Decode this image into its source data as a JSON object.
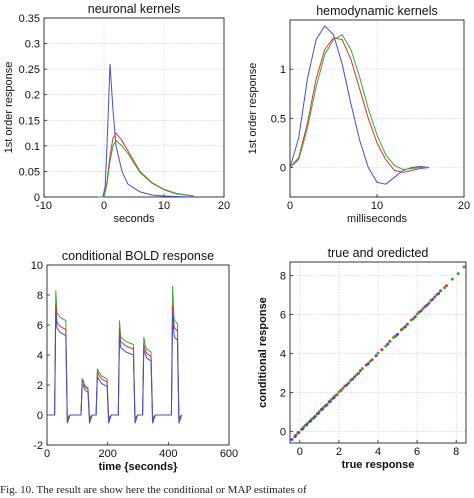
{
  "colors": {
    "red": "#d23a2a",
    "green": "#3aa63a",
    "blue": "#4450c8",
    "grid": "#c8c8c8"
  },
  "caption": "Fig. 10. The result are show here the conditional or MAP estimates of",
  "chart_data": [
    {
      "id": "neuronal",
      "type": "line",
      "title": "neuronal kernels",
      "xlabel": "seconds",
      "ylabel": "1st order response",
      "xlim": [
        -10,
        20
      ],
      "ylim": [
        0,
        0.35
      ],
      "xticks": [
        -10,
        0,
        10,
        20
      ],
      "yticks": [
        0,
        0.05,
        0.1,
        0.15,
        0.2,
        0.25,
        0.3,
        0.35
      ],
      "grid": true,
      "series": [
        {
          "color": "blue",
          "x": [
            -1,
            -0.2,
            0.2,
            0.6,
            1,
            1.5,
            2,
            3,
            4,
            6,
            8,
            10,
            12,
            15
          ],
          "y": [
            0,
            0,
            0.02,
            0.13,
            0.26,
            0.17,
            0.1,
            0.05,
            0.025,
            0.01,
            0.004,
            0.002,
            0.001,
            0
          ]
        },
        {
          "color": "red",
          "x": [
            -1,
            0,
            0.5,
            1,
            1.5,
            2,
            3,
            4,
            5,
            6,
            8,
            10,
            12,
            15
          ],
          "y": [
            0,
            0,
            0.03,
            0.08,
            0.115,
            0.125,
            0.11,
            0.09,
            0.07,
            0.05,
            0.028,
            0.015,
            0.007,
            0.002
          ]
        },
        {
          "color": "green",
          "x": [
            -1,
            0,
            0.5,
            1,
            1.5,
            2,
            3,
            4,
            5,
            6,
            8,
            10,
            12,
            15
          ],
          "y": [
            0,
            0,
            0.025,
            0.07,
            0.1,
            0.11,
            0.1,
            0.085,
            0.066,
            0.048,
            0.027,
            0.014,
            0.006,
            0.002
          ]
        }
      ]
    },
    {
      "id": "hemodynamic",
      "type": "line",
      "title": "hemodynamic kernels",
      "xlabel": "milliseconds",
      "ylabel": "1st order response",
      "xlim": [
        0,
        20
      ],
      "ylim": [
        -0.3,
        1.5
      ],
      "xticks": [
        0,
        10,
        20
      ],
      "xticklabels": [
        "0",
        "10",
        "20"
      ],
      "yticks": [
        0,
        0.5,
        1
      ],
      "grid": true,
      "series": [
        {
          "color": "blue",
          "x": [
            0,
            1,
            2,
            3,
            4,
            5,
            6,
            7,
            8,
            9,
            10,
            11,
            12,
            13,
            14,
            15,
            16
          ],
          "y": [
            0,
            0.3,
            0.9,
            1.3,
            1.44,
            1.35,
            1.05,
            0.65,
            0.28,
            0.0,
            -0.15,
            -0.17,
            -0.1,
            -0.03,
            0.0,
            0.01,
            0.0
          ]
        },
        {
          "color": "red",
          "x": [
            0,
            1,
            2,
            3,
            4,
            5,
            6,
            7,
            8,
            9,
            10,
            11,
            12,
            13,
            14,
            15,
            16
          ],
          "y": [
            0,
            0.1,
            0.45,
            0.9,
            1.2,
            1.32,
            1.3,
            1.1,
            0.8,
            0.5,
            0.25,
            0.08,
            -0.03,
            -0.05,
            -0.03,
            -0.01,
            0.0
          ]
        },
        {
          "color": "green",
          "x": [
            0,
            1,
            2,
            3,
            4,
            5,
            6,
            7,
            8,
            9,
            10,
            11,
            12,
            13,
            14,
            15,
            16
          ],
          "y": [
            0,
            0.08,
            0.4,
            0.82,
            1.15,
            1.3,
            1.35,
            1.2,
            0.92,
            0.6,
            0.33,
            0.13,
            0.02,
            -0.02,
            -0.01,
            0.0,
            0.0
          ]
        }
      ]
    },
    {
      "id": "bold",
      "type": "line",
      "title": "conditional BOLD response",
      "xlabel": "time {seconds}",
      "ylabel": "",
      "xlim": [
        0,
        600
      ],
      "ylim": [
        -2,
        10
      ],
      "xticks": [
        0,
        200,
        400,
        600
      ],
      "yticks": [
        -2,
        0,
        2,
        4,
        6,
        8,
        10
      ],
      "grid": false,
      "blocks": [
        {
          "start": 25,
          "end": 62,
          "peaks": {
            "red": 7.4,
            "green": 8.3,
            "blue": 6.8
          },
          "plateau": {
            "red": 5.9,
            "green": 6.5,
            "blue": 5.5
          }
        },
        {
          "start": 112,
          "end": 135,
          "peaks": {
            "red": 2.3,
            "green": 2.4,
            "blue": 2.0
          },
          "plateau": {
            "red": 1.9,
            "green": 2.0,
            "blue": 1.7
          }
        },
        {
          "start": 162,
          "end": 198,
          "peaks": {
            "red": 2.9,
            "green": 3.1,
            "blue": 2.6
          },
          "plateau": {
            "red": 2.4,
            "green": 2.6,
            "blue": 2.1
          }
        },
        {
          "start": 235,
          "end": 285,
          "peaks": {
            "red": 5.8,
            "green": 6.3,
            "blue": 5.4
          },
          "plateau": {
            "red": 4.6,
            "green": 4.9,
            "blue": 4.2
          }
        },
        {
          "start": 315,
          "end": 343,
          "peaks": {
            "red": 4.7,
            "green": 5.2,
            "blue": 4.4
          },
          "plateau": {
            "red": 4.1,
            "green": 4.4,
            "blue": 3.8
          }
        },
        {
          "start": 410,
          "end": 430,
          "peaks": {
            "red": 7.3,
            "green": 8.6,
            "blue": 6.8
          },
          "plateau": {
            "red": 5.8,
            "green": 6.3,
            "blue": 5.2
          }
        }
      ],
      "undershoot": {
        "red": -0.3,
        "green": -0.2,
        "blue": -0.55
      }
    },
    {
      "id": "scatter",
      "type": "scatter",
      "title": "true and oredicted",
      "xlabel": "true response",
      "ylabel": "conditional response",
      "xlim": [
        -0.5,
        8.5
      ],
      "ylim": [
        -0.6,
        8.7
      ],
      "xticks": [
        0,
        2,
        4,
        6,
        8
      ],
      "yticks": [
        0,
        2,
        4,
        6,
        8
      ],
      "grid": true,
      "series": [
        {
          "color": "red",
          "x": [
            -0.2,
            0.1,
            0.3,
            0.5,
            0.7,
            0.9,
            1.1,
            1.3,
            1.5,
            1.7,
            1.9,
            2.1,
            2.3,
            2.5,
            2.8,
            3.1,
            3.4,
            3.7,
            4.2,
            4.6,
            4.9,
            5.2,
            5.5,
            5.8,
            6.1,
            6.4,
            6.6,
            6.9,
            7.2,
            7.5
          ],
          "y": [
            -0.2,
            0.1,
            0.32,
            0.5,
            0.68,
            0.9,
            1.12,
            1.3,
            1.52,
            1.7,
            1.88,
            2.1,
            2.32,
            2.48,
            2.8,
            3.12,
            3.4,
            3.68,
            4.2,
            4.62,
            4.9,
            5.22,
            5.5,
            5.78,
            6.12,
            6.4,
            6.58,
            6.9,
            7.22,
            7.48
          ]
        },
        {
          "color": "green",
          "x": [
            -0.1,
            0.2,
            0.4,
            0.6,
            0.8,
            1.0,
            1.2,
            1.4,
            1.6,
            1.8,
            2.0,
            2.2,
            2.6,
            2.9,
            3.2,
            3.6,
            4.0,
            4.4,
            4.8,
            5.3,
            5.7,
            6.0,
            6.3,
            6.7,
            7.0,
            7.4,
            7.8,
            8.1,
            8.4
          ],
          "y": [
            -0.08,
            0.22,
            0.42,
            0.62,
            0.78,
            1.02,
            1.22,
            1.38,
            1.62,
            1.82,
            2.02,
            2.2,
            2.62,
            2.9,
            3.22,
            3.6,
            4.02,
            4.38,
            4.82,
            5.3,
            5.72,
            6.02,
            6.3,
            6.72,
            7.02,
            7.38,
            7.82,
            8.1,
            8.45
          ]
        },
        {
          "color": "blue",
          "x": [
            -0.4,
            -0.25,
            -0.05,
            0.15,
            0.35,
            0.55,
            0.75,
            0.95,
            1.15,
            1.35,
            1.55,
            1.75,
            2.4,
            2.7,
            3.0,
            3.5,
            3.9,
            4.5,
            5.0,
            5.4,
            5.9,
            6.2,
            6.5,
            6.8,
            7.1
          ],
          "y": [
            -0.42,
            -0.27,
            -0.07,
            0.13,
            0.33,
            0.53,
            0.73,
            0.92,
            1.13,
            1.33,
            1.52,
            1.73,
            2.38,
            2.68,
            2.98,
            3.47,
            3.88,
            4.48,
            4.98,
            5.38,
            5.88,
            6.18,
            6.48,
            6.78,
            7.08
          ]
        }
      ]
    }
  ]
}
